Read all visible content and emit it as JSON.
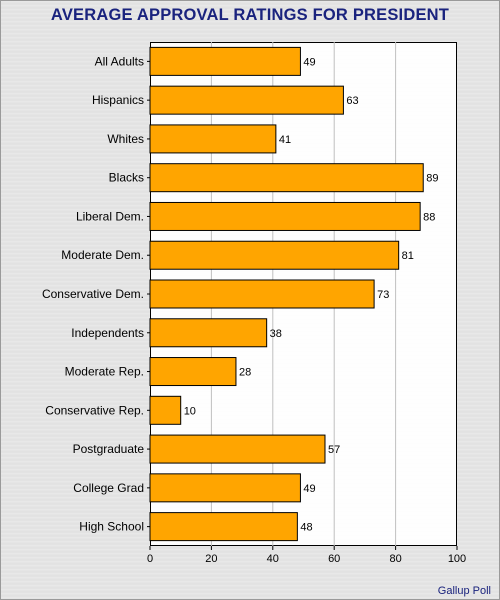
{
  "title": "AVERAGE APPROVAL RATINGS FOR PRESIDENT",
  "source": "Gallup Poll",
  "colors": {
    "bar": "#FFA500",
    "bar_stroke": "#000000",
    "title": "#1a237e",
    "grid": "#c0c0c0"
  },
  "chart_data": {
    "type": "bar",
    "orientation": "horizontal",
    "title": "AVERAGE APPROVAL RATINGS FOR PRESIDENT",
    "xlabel": "",
    "ylabel": "",
    "xlim": [
      0,
      100
    ],
    "xticks": [
      0,
      20,
      40,
      60,
      80,
      100
    ],
    "grid": true,
    "legend": "none",
    "categories": [
      "All Adults",
      "Hispanics",
      "Whites",
      "Blacks",
      "Liberal Dem.",
      "Moderate Dem.",
      "Conservative Dem.",
      "Independents",
      "Moderate Rep.",
      "Conservative Rep.",
      "Postgraduate",
      "College Grad",
      "High School"
    ],
    "values": [
      49,
      63,
      41,
      89,
      88,
      81,
      73,
      38,
      28,
      10,
      57,
      49,
      48
    ]
  }
}
